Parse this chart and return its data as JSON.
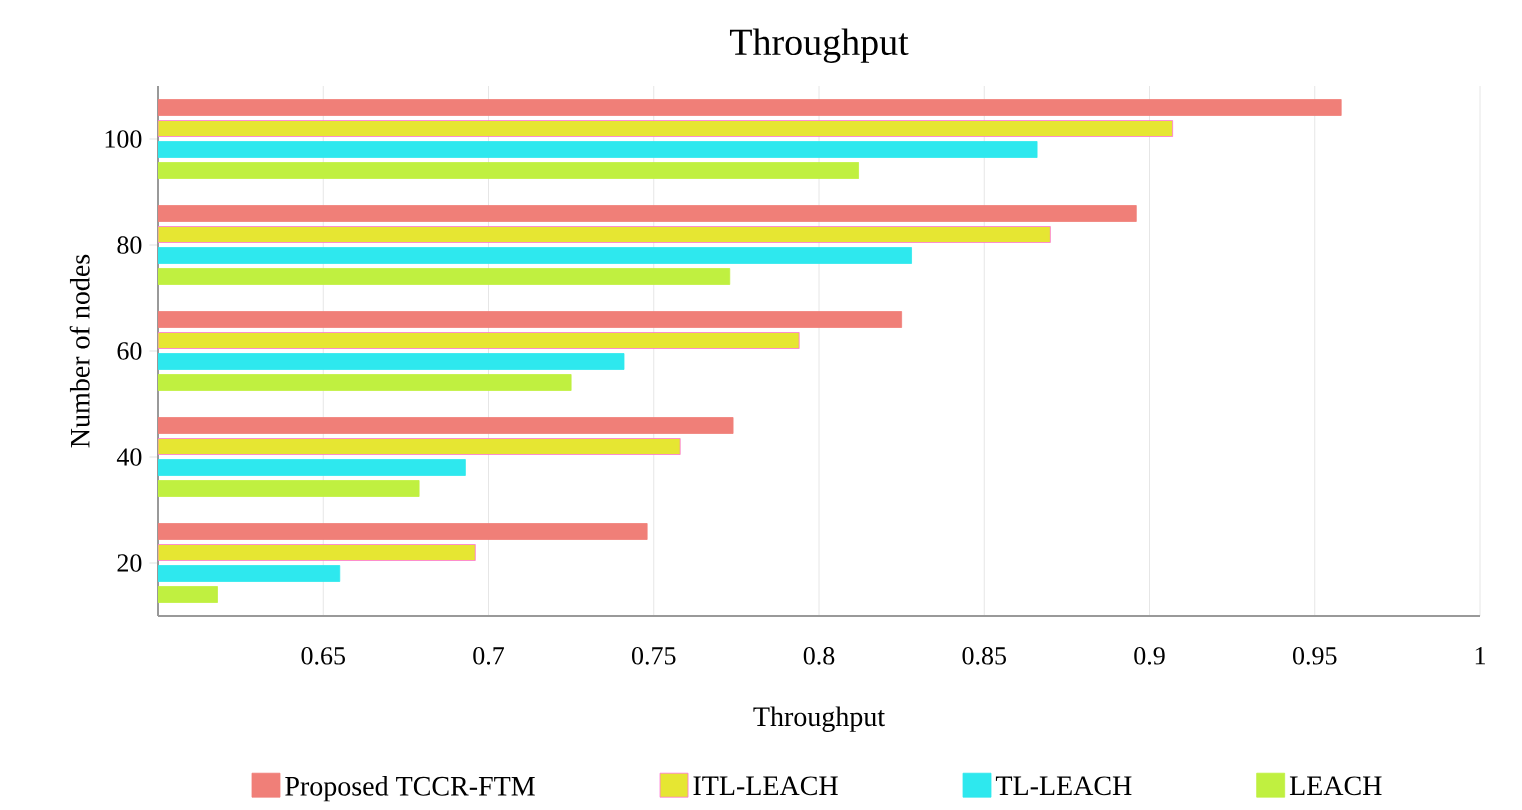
{
  "chart_data": {
    "type": "bar",
    "orientation": "horizontal",
    "title": "Throughput",
    "xlabel": "Throughput",
    "ylabel": "Number of nodes",
    "categories": [
      "100",
      "80",
      "60",
      "40",
      "20"
    ],
    "series": [
      {
        "name": "Proposed TCCR-FTM",
        "color": "#f07f78",
        "values": [
          0.958,
          0.896,
          0.825,
          0.774,
          0.748
        ]
      },
      {
        "name": "ITL-LEACH",
        "color": "#e6e632",
        "values": [
          0.907,
          0.87,
          0.794,
          0.758,
          0.696
        ]
      },
      {
        "name": "TL-LEACH",
        "color": "#2ee8ee",
        "values": [
          0.866,
          0.828,
          0.741,
          0.693,
          0.655
        ]
      },
      {
        "name": "LEACH",
        "color": "#c0f040",
        "values": [
          0.812,
          0.773,
          0.725,
          0.679,
          0.618
        ]
      }
    ],
    "xlim": [
      0.6,
      1
    ],
    "xticks": [
      {
        "value": 0.6,
        "label": null
      },
      0.65,
      0.7,
      0.75,
      0.8,
      0.85,
      0.9,
      0.95,
      1
    ],
    "grid": "x",
    "legend": "bottom"
  }
}
